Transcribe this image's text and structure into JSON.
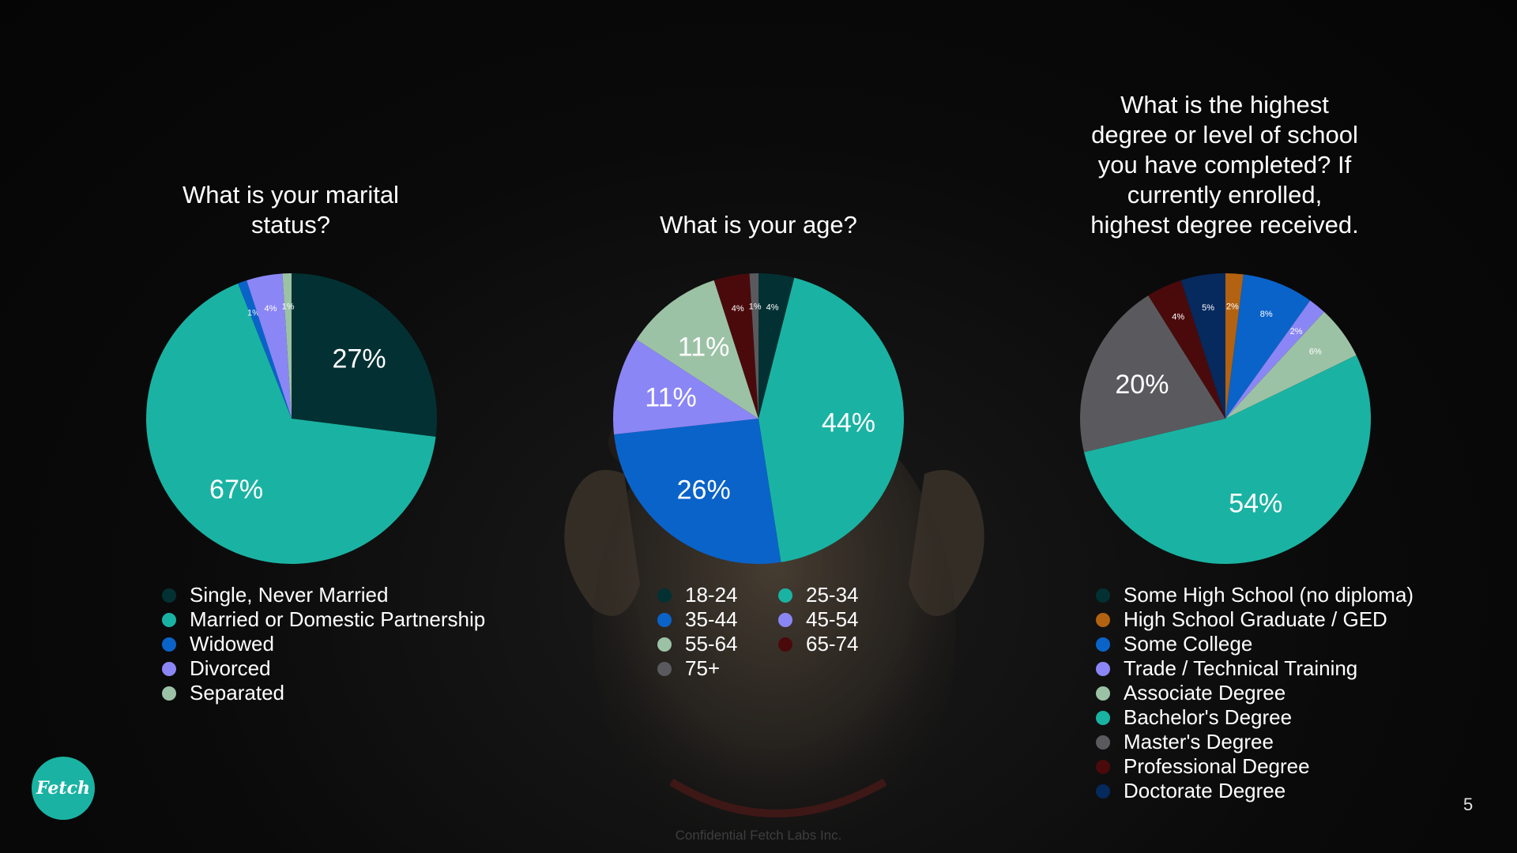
{
  "charts": [
    {
      "title": "What is your marital\nstatus?",
      "legend": [
        {
          "label": "Single, Never Married",
          "color": "#033133"
        },
        {
          "label": "Married or Domestic Partnership",
          "color": "#1ab3a3"
        },
        {
          "label": "Widowed",
          "color": "#0a63c9"
        },
        {
          "label": "Divorced",
          "color": "#8b86f5"
        },
        {
          "label": "Separated",
          "color": "#9cc2a6"
        }
      ]
    },
    {
      "title": "What is your age?",
      "legend": [
        {
          "label": "18-24",
          "color": "#033133"
        },
        {
          "label": "25-34",
          "color": "#1ab3a3"
        },
        {
          "label": "35-44",
          "color": "#0a63c9"
        },
        {
          "label": "45-54",
          "color": "#8b86f5"
        },
        {
          "label": "55-64",
          "color": "#9cc2a6"
        },
        {
          "label": "65-74",
          "color": "#4a0a0c"
        },
        {
          "label": "75+",
          "color": "#5a5a5e"
        }
      ]
    },
    {
      "title": "What is the highest\ndegree or level of school\nyou have completed? If\ncurrently enrolled,\nhighest degree received.",
      "legend": [
        {
          "label": "Some High School (no diploma)",
          "color": "#033133"
        },
        {
          "label": "High School Graduate / GED",
          "color": "#b26210"
        },
        {
          "label": "Some College",
          "color": "#0a63c9"
        },
        {
          "label": "Trade / Technical Training",
          "color": "#8b86f5"
        },
        {
          "label": "Associate Degree",
          "color": "#9cc2a6"
        },
        {
          "label": "Bachelor's Degree",
          "color": "#1ab3a3"
        },
        {
          "label": "Master's Degree",
          "color": "#5a5a5e"
        },
        {
          "label": "Professional Degree",
          "color": "#4a0a0c"
        },
        {
          "label": "Doctorate Degree",
          "color": "#06295e"
        }
      ]
    }
  ],
  "chart_data": [
    {
      "type": "pie",
      "title": "What is your marital status?",
      "categories": [
        "Single, Never Married",
        "Married or Domestic Partnership",
        "Widowed",
        "Divorced",
        "Separated"
      ],
      "values": [
        27,
        67,
        1,
        4,
        1
      ],
      "labels": [
        "27%",
        "67%",
        "1%",
        "4%",
        "1%"
      ]
    },
    {
      "type": "pie",
      "title": "What is your age?",
      "categories": [
        "18-24",
        "25-34",
        "35-44",
        "45-54",
        "55-64",
        "65-74",
        "75+"
      ],
      "values": [
        4,
        44,
        26,
        11,
        11,
        4,
        1
      ],
      "labels": [
        "4%",
        "44%",
        "26%",
        "11%",
        "11%",
        "4%",
        "1%"
      ]
    },
    {
      "type": "pie",
      "title": "What is the highest degree or level of school you have completed? If currently enrolled, highest degree received.",
      "categories": [
        "Some High School (no diploma)",
        "High School Graduate / GED",
        "Some College",
        "Trade / Technical Training",
        "Associate Degree",
        "Bachelor's Degree",
        "Master's Degree",
        "Professional Degree",
        "Doctorate Degree"
      ],
      "values": [
        0,
        2,
        8,
        2,
        6,
        54,
        20,
        4,
        5
      ],
      "labels": [
        "",
        "2%",
        "8%",
        "2%",
        "6%",
        "54%",
        "20%",
        "4%",
        "5%"
      ]
    }
  ],
  "footer": "Confidential Fetch Labs Inc.",
  "page_number": "5",
  "logo_text": "Fetch"
}
